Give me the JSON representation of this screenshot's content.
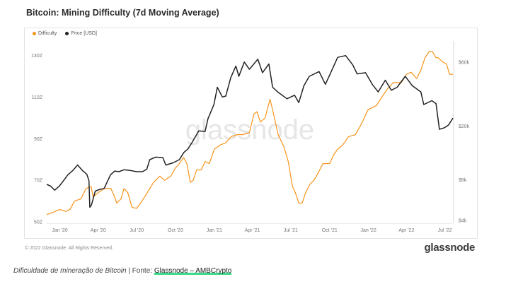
{
  "chart_data": {
    "type": "line",
    "title": "Bitcoin: Mining Difficulty (7d Moving Average)",
    "x_tick_labels": [
      "Jan '20",
      "Apr '20",
      "Jul '20",
      "Oct '20",
      "Jan '21",
      "Apr '21",
      "Jul '21",
      "Oct '21",
      "Jan '22",
      "Apr '22",
      "Jul '22"
    ],
    "x_range": [
      "2019-12-01",
      "2022-07-20"
    ],
    "y_left": {
      "label": "",
      "ticks": [
        "50Z",
        "70Z",
        "90Z",
        "110Z",
        "130Z"
      ],
      "range": [
        50,
        135
      ]
    },
    "y_right": {
      "label": "",
      "scale": "log",
      "ticks": [
        "$4k",
        "$8k",
        "$20k",
        "$60k"
      ],
      "range": [
        3900,
        80000
      ]
    },
    "grid": false,
    "legend_position": "top-left",
    "series": [
      {
        "name": "Difficulty",
        "axis": "left",
        "color": "#f7931a",
        "points": [
          [
            "2019-12-01",
            53.5
          ],
          [
            "2019-12-15",
            54.5
          ],
          [
            "2020-01-01",
            56
          ],
          [
            "2020-01-15",
            55
          ],
          [
            "2020-01-25",
            56
          ],
          [
            "2020-02-05",
            60
          ],
          [
            "2020-02-20",
            61
          ],
          [
            "2020-03-03",
            66
          ],
          [
            "2020-03-15",
            67
          ],
          [
            "2020-03-20",
            62
          ],
          [
            "2020-04-01",
            64
          ],
          [
            "2020-04-15",
            66
          ],
          [
            "2020-05-01",
            66
          ],
          [
            "2020-05-10",
            62
          ],
          [
            "2020-05-15",
            59
          ],
          [
            "2020-05-25",
            61
          ],
          [
            "2020-06-01",
            66
          ],
          [
            "2020-06-10",
            64
          ],
          [
            "2020-06-20",
            57
          ],
          [
            "2020-07-01",
            56.5
          ],
          [
            "2020-07-10",
            59
          ],
          [
            "2020-07-20",
            62
          ],
          [
            "2020-08-01",
            66
          ],
          [
            "2020-08-10",
            69
          ],
          [
            "2020-08-25",
            72
          ],
          [
            "2020-09-05",
            70
          ],
          [
            "2020-09-20",
            72
          ],
          [
            "2020-10-01",
            76
          ],
          [
            "2020-10-10",
            78
          ],
          [
            "2020-10-20",
            81
          ],
          [
            "2020-10-28",
            78
          ],
          [
            "2020-11-05",
            69
          ],
          [
            "2020-11-12",
            70
          ],
          [
            "2020-11-20",
            75
          ],
          [
            "2020-12-01",
            75
          ],
          [
            "2020-12-10",
            79
          ],
          [
            "2020-12-20",
            78
          ],
          [
            "2021-01-01",
            85
          ],
          [
            "2021-01-15",
            87
          ],
          [
            "2021-01-28",
            88
          ],
          [
            "2021-02-10",
            91
          ],
          [
            "2021-02-25",
            92
          ],
          [
            "2021-03-10",
            92
          ],
          [
            "2021-03-25",
            93
          ],
          [
            "2021-04-05",
            102
          ],
          [
            "2021-04-12",
            103
          ],
          [
            "2021-04-20",
            98
          ],
          [
            "2021-05-01",
            100
          ],
          [
            "2021-05-13",
            109
          ],
          [
            "2021-05-20",
            103
          ],
          [
            "2021-06-01",
            92
          ],
          [
            "2021-06-15",
            86
          ],
          [
            "2021-06-25",
            79
          ],
          [
            "2021-07-05",
            67
          ],
          [
            "2021-07-12",
            64
          ],
          [
            "2021-07-20",
            59
          ],
          [
            "2021-07-28",
            59
          ],
          [
            "2021-08-05",
            64
          ],
          [
            "2021-08-15",
            68
          ],
          [
            "2021-08-25",
            70
          ],
          [
            "2021-09-05",
            74
          ],
          [
            "2021-09-15",
            78
          ],
          [
            "2021-10-01",
            78
          ],
          [
            "2021-10-10",
            82
          ],
          [
            "2021-10-20",
            85
          ],
          [
            "2021-11-01",
            87
          ],
          [
            "2021-11-15",
            91
          ],
          [
            "2021-12-01",
            92
          ],
          [
            "2021-12-15",
            97
          ],
          [
            "2021-12-31",
            104
          ],
          [
            "2022-01-20",
            106
          ],
          [
            "2022-02-05",
            111
          ],
          [
            "2022-02-15",
            114
          ],
          [
            "2022-03-01",
            117
          ],
          [
            "2022-03-20",
            117
          ],
          [
            "2022-04-01",
            121
          ],
          [
            "2022-04-12",
            122
          ],
          [
            "2022-04-25",
            119
          ],
          [
            "2022-05-05",
            123
          ],
          [
            "2022-05-15",
            129
          ],
          [
            "2022-05-25",
            132
          ],
          [
            "2022-06-01",
            132
          ],
          [
            "2022-06-10",
            129
          ],
          [
            "2022-06-15",
            129
          ],
          [
            "2022-06-25",
            127
          ],
          [
            "2022-07-05",
            126
          ],
          [
            "2022-07-12",
            121
          ],
          [
            "2022-07-20",
            121
          ]
        ]
      },
      {
        "name": "Price [USD]",
        "axis": "right",
        "color": "#222222",
        "points": [
          [
            "2019-12-01",
            7400
          ],
          [
            "2019-12-10",
            7200
          ],
          [
            "2019-12-20",
            6700
          ],
          [
            "2019-12-31",
            7200
          ],
          [
            "2020-01-10",
            7900
          ],
          [
            "2020-01-20",
            8700
          ],
          [
            "2020-02-01",
            9400
          ],
          [
            "2020-02-12",
            10300
          ],
          [
            "2020-02-25",
            9300
          ],
          [
            "2020-03-05",
            8800
          ],
          [
            "2020-03-10",
            7900
          ],
          [
            "2020-03-12",
            5000
          ],
          [
            "2020-03-16",
            5200
          ],
          [
            "2020-03-25",
            6600
          ],
          [
            "2020-04-05",
            6800
          ],
          [
            "2020-04-15",
            6900
          ],
          [
            "2020-04-30",
            8700
          ],
          [
            "2020-05-10",
            9300
          ],
          [
            "2020-05-20",
            9200
          ],
          [
            "2020-06-01",
            9500
          ],
          [
            "2020-06-15",
            9400
          ],
          [
            "2020-07-01",
            9200
          ],
          [
            "2020-07-15",
            9200
          ],
          [
            "2020-07-25",
            9600
          ],
          [
            "2020-08-01",
            11300
          ],
          [
            "2020-08-15",
            11800
          ],
          [
            "2020-09-01",
            11700
          ],
          [
            "2020-09-08",
            10300
          ],
          [
            "2020-09-25",
            10700
          ],
          [
            "2020-10-10",
            11300
          ],
          [
            "2020-10-21",
            12800
          ],
          [
            "2020-10-30",
            13500
          ],
          [
            "2020-11-10",
            15300
          ],
          [
            "2020-11-25",
            18500
          ],
          [
            "2020-12-10",
            18300
          ],
          [
            "2020-12-17",
            22800
          ],
          [
            "2020-12-31",
            29000
          ],
          [
            "2021-01-08",
            39000
          ],
          [
            "2021-01-20",
            33000
          ],
          [
            "2021-01-28",
            33500
          ],
          [
            "2021-02-09",
            46000
          ],
          [
            "2021-02-21",
            56000
          ],
          [
            "2021-02-28",
            47000
          ],
          [
            "2021-03-13",
            60000
          ],
          [
            "2021-03-25",
            53000
          ],
          [
            "2021-04-14",
            63000
          ],
          [
            "2021-04-25",
            50000
          ],
          [
            "2021-05-10",
            58000
          ],
          [
            "2021-05-19",
            39000
          ],
          [
            "2021-05-31",
            36000
          ],
          [
            "2021-06-22",
            32000
          ],
          [
            "2021-07-10",
            34000
          ],
          [
            "2021-07-20",
            30000
          ],
          [
            "2021-08-01",
            40000
          ],
          [
            "2021-08-14",
            47000
          ],
          [
            "2021-09-06",
            51000
          ],
          [
            "2021-09-21",
            41000
          ],
          [
            "2021-10-01",
            48000
          ],
          [
            "2021-10-20",
            65000
          ],
          [
            "2021-11-08",
            67000
          ],
          [
            "2021-11-25",
            57000
          ],
          [
            "2021-12-05",
            49000
          ],
          [
            "2021-12-25",
            50000
          ],
          [
            "2022-01-10",
            41000
          ],
          [
            "2022-01-24",
            36000
          ],
          [
            "2022-02-10",
            44000
          ],
          [
            "2022-02-24",
            37000
          ],
          [
            "2022-03-10",
            39000
          ],
          [
            "2022-03-29",
            47000
          ],
          [
            "2022-04-15",
            40000
          ],
          [
            "2022-05-05",
            36000
          ],
          [
            "2022-05-12",
            29000
          ],
          [
            "2022-05-31",
            31000
          ],
          [
            "2022-06-10",
            29500
          ],
          [
            "2022-06-18",
            19000
          ],
          [
            "2022-06-30",
            19500
          ],
          [
            "2022-07-10",
            20500
          ],
          [
            "2022-07-20",
            23000
          ]
        ]
      }
    ]
  },
  "copyright": "© 2022 Glassnode. All Rights Reserved.",
  "brand": "glassnode",
  "watermark": "glassnode",
  "caption": {
    "italic": "Dificuldade de mineração de Bitcoin",
    "plain": " | Fonte: ",
    "link": "Glassnode – AMBCrypto"
  }
}
